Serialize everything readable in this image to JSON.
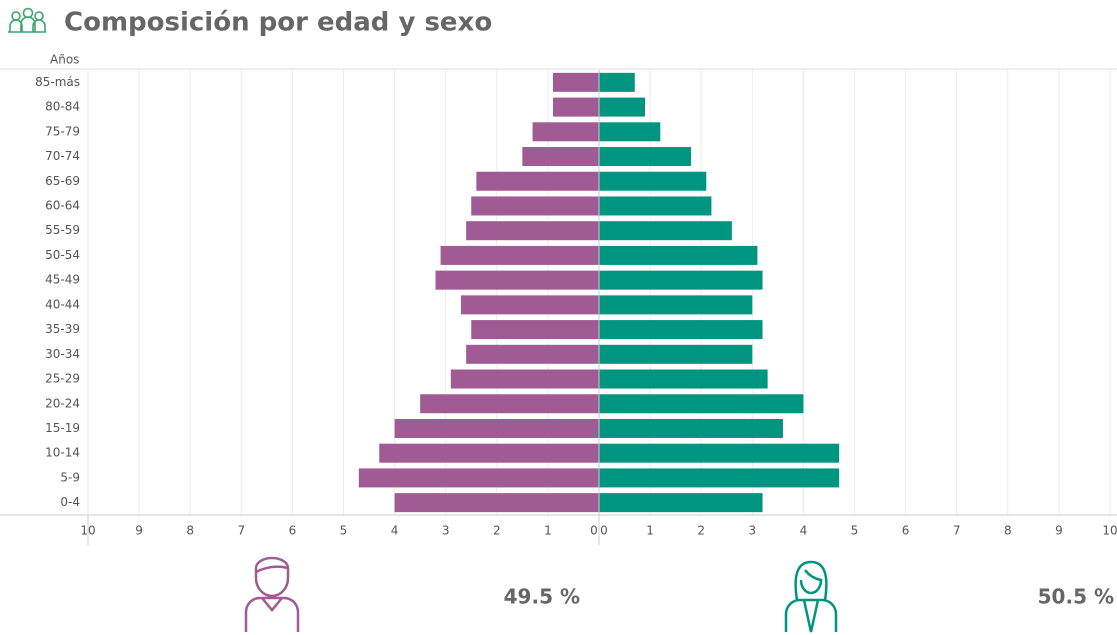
{
  "chart_data": {
    "type": "pyramid",
    "title": "Composición por edad y sexo",
    "y_label": "Años",
    "categories": [
      "85-más",
      "80-84",
      "75-79",
      "70-74",
      "65-69",
      "60-64",
      "55-59",
      "50-54",
      "45-49",
      "40-44",
      "35-39",
      "30-34",
      "25-29",
      "20-24",
      "15-19",
      "10-14",
      "5-9",
      "0-4"
    ],
    "series": [
      {
        "color": "#a05a94",
        "side": "left",
        "values": [
          0.9,
          0.9,
          1.3,
          1.5,
          2.4,
          2.5,
          2.6,
          3.1,
          3.2,
          2.7,
          2.5,
          2.6,
          2.9,
          3.5,
          4.0,
          4.3,
          4.7,
          4.0
        ]
      },
      {
        "color": "#009580",
        "side": "right",
        "values": [
          0.7,
          0.9,
          1.2,
          1.8,
          2.1,
          2.2,
          2.6,
          3.1,
          3.2,
          3.0,
          3.2,
          3.0,
          3.3,
          4.0,
          3.6,
          4.7,
          4.7,
          3.2
        ]
      }
    ],
    "xlim": [
      0,
      10
    ],
    "xticks": [
      0,
      1,
      2,
      3,
      4,
      5,
      6,
      7,
      8,
      9,
      10
    ],
    "grid": true,
    "summary": [
      "49.5 %",
      "50.5 %"
    ]
  }
}
